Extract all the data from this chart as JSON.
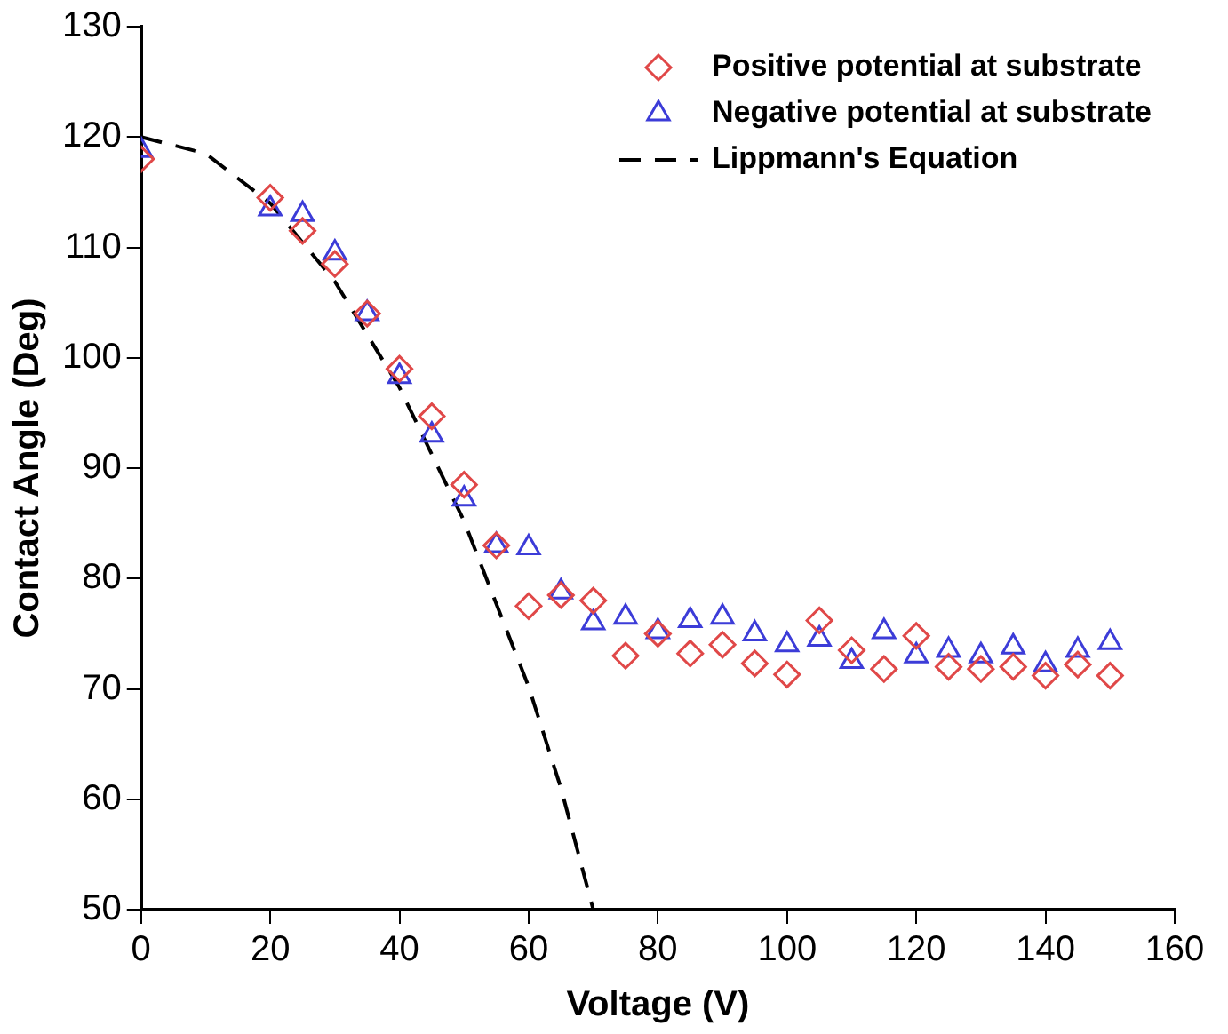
{
  "chart_data": {
    "type": "scatter",
    "xlabel": "Voltage (V)",
    "ylabel": "Contact Angle (Deg)",
    "xlim": [
      0,
      160
    ],
    "xticks": [
      0,
      20,
      40,
      60,
      80,
      100,
      120,
      140,
      160
    ],
    "ylim": [
      50,
      130
    ],
    "yticks": [
      50,
      60,
      70,
      80,
      90,
      100,
      110,
      120,
      130
    ],
    "grid": false,
    "legend": "top right",
    "series": [
      {
        "name": "Positive potential at substrate",
        "type": "scatter",
        "marker": "diamond",
        "color": "#e04848",
        "x": [
          0,
          20,
          25,
          30,
          35,
          40,
          45,
          50,
          55,
          60,
          65,
          70,
          75,
          80,
          85,
          90,
          95,
          100,
          105,
          110,
          115,
          120,
          125,
          130,
          135,
          140,
          145,
          150
        ],
        "values": [
          118,
          114.5,
          111.5,
          108.5,
          104,
          99,
          94.7,
          88.5,
          83,
          77.5,
          78.5,
          78,
          73,
          75,
          73.2,
          74,
          72.3,
          71.3,
          76.2,
          73.5,
          71.8,
          74.8,
          72,
          71.8,
          72,
          71.2,
          72.2,
          71.2
        ]
      },
      {
        "name": "Negative potential at substrate",
        "type": "scatter",
        "marker": "triangle",
        "color": "#3c3cd8",
        "x": [
          0,
          20,
          25,
          30,
          35,
          40,
          45,
          50,
          55,
          60,
          65,
          70,
          75,
          80,
          85,
          90,
          95,
          100,
          105,
          110,
          115,
          120,
          125,
          130,
          135,
          140,
          145,
          150
        ],
        "values": [
          118.8,
          113.5,
          113,
          109.5,
          104,
          98.3,
          93,
          87.2,
          83,
          82.8,
          78.8,
          76,
          76.5,
          75.2,
          76.2,
          76.5,
          75,
          74,
          74.5,
          72.5,
          75.2,
          73,
          73.5,
          73,
          73.8,
          72.2,
          73.5,
          74.2
        ]
      },
      {
        "name": "Lippmann's Equation",
        "type": "line",
        "marker": "none",
        "line_style": "dashed",
        "color": "#000000",
        "x": [
          0,
          10,
          20,
          30,
          40,
          50,
          60,
          65,
          70
        ],
        "values": [
          120,
          118.5,
          114,
          106.9,
          97.3,
          85.2,
          70.2,
          61,
          50
        ]
      }
    ]
  }
}
